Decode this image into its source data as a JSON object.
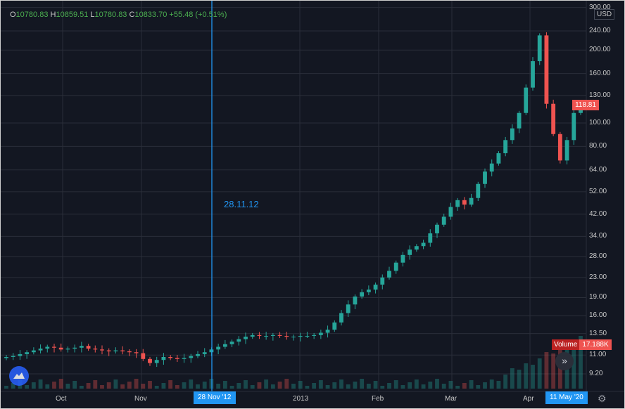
{
  "legend": {
    "open_label": "O",
    "open": "10780.83",
    "high_label": "H",
    "high": "10859.51",
    "low_label": "L",
    "low": "10780.83",
    "close_label": "C",
    "close": "10833.70",
    "change": "+55.48",
    "change_pct": "(+0.51%)"
  },
  "currency": "USD",
  "crosshair": {
    "label": "28.11.12",
    "date_tag": "28 Nov '12"
  },
  "last_price": "118.81",
  "volume_tag": {
    "label": "Volume",
    "value": "17.188K"
  },
  "end_date_tag": "11 May '20",
  "icons": {
    "logo": "tradingview-cloud-icon",
    "scroll": "double-chevron-right-icon",
    "settings": "gear-icon"
  },
  "colors": {
    "background": "#131722",
    "up": "#26a69a",
    "down": "#ef5350",
    "crosshair": "#2196f3",
    "grid": "#2a2e39"
  },
  "chart_data": {
    "type": "candlestick",
    "y_scale": "log",
    "y_ticks": [
      "300.00",
      "240.00",
      "200.00",
      "160.00",
      "130.00",
      "100.00",
      "80.00",
      "64.00",
      "52.00",
      "42.00",
      "34.00",
      "28.00",
      "23.00",
      "19.00",
      "16.00",
      "13.50",
      "11.00",
      "9.20"
    ],
    "x_ticks": [
      "Oct",
      "Nov",
      "2013",
      "Feb",
      "Mar",
      "Apr"
    ],
    "grid": true,
    "close_series": [
      10.8,
      10.9,
      11.1,
      11.3,
      11.5,
      11.7,
      11.9,
      11.8,
      11.6,
      11.7,
      11.8,
      12.0,
      11.7,
      11.6,
      11.5,
      11.4,
      11.5,
      11.4,
      11.3,
      11.2,
      10.6,
      10.2,
      10.5,
      10.8,
      10.7,
      10.6,
      10.7,
      10.9,
      11.1,
      11.3,
      11.6,
      11.9,
      12.2,
      12.5,
      12.8,
      13.1,
      13.3,
      13.2,
      13.2,
      13.3,
      13.2,
      13.1,
      13.1,
      13.2,
      13.2,
      13.3,
      13.6,
      14.0,
      15.0,
      16.4,
      17.8,
      19.2,
      20.0,
      20.5,
      21.5,
      23.0,
      24.5,
      26.5,
      28.5,
      30.0,
      31.0,
      32.0,
      35.0,
      38.0,
      41.0,
      45.0,
      48.0,
      46.0,
      49.0,
      56.0,
      63.0,
      68.0,
      75.0,
      85.0,
      95.0,
      110.0,
      140.0,
      180.0,
      230.0,
      120.0,
      90.0,
      70.0,
      85.0,
      110.0,
      118.81
    ],
    "last_price": 118.81,
    "volume_last": "17.188K"
  }
}
